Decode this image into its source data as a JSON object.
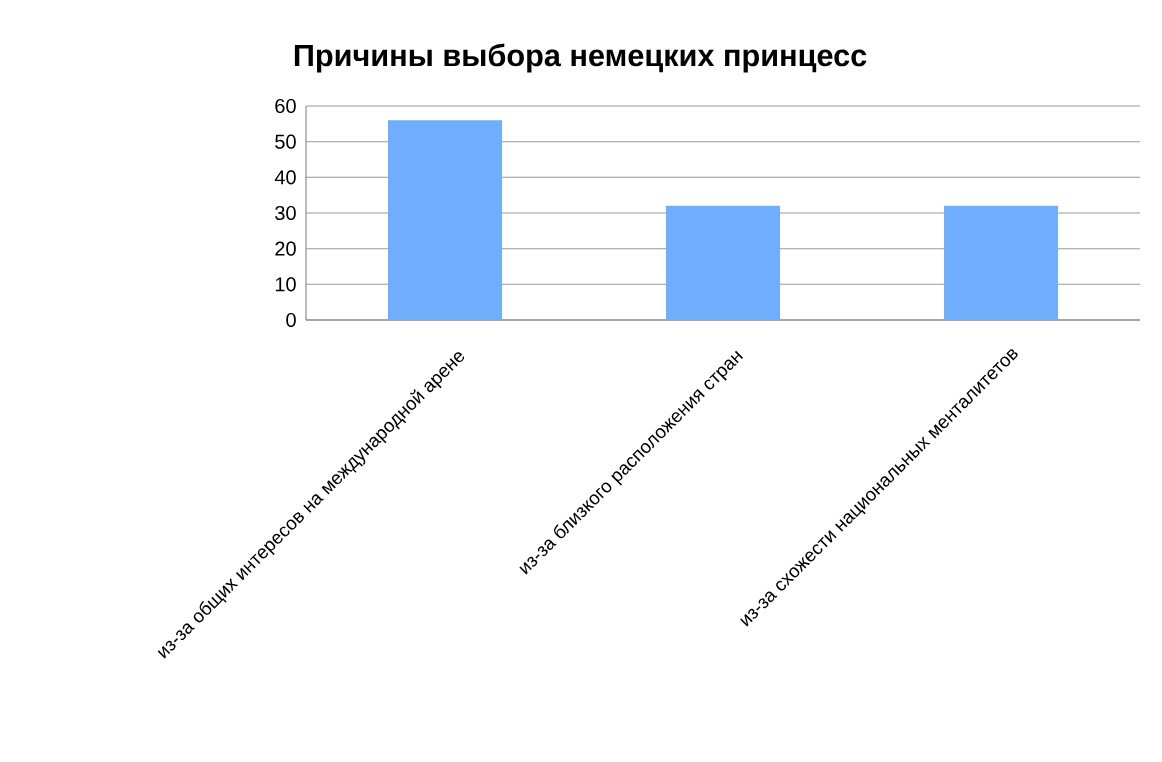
{
  "chart_data": {
    "type": "bar",
    "title": "Причины выбора немецких принцесс",
    "categories": [
      "из-за общих интересов на международной арене",
      "из-за близкого расположения  стран",
      "из-за схожести национальных менталитетов"
    ],
    "values": [
      56,
      32,
      32
    ],
    "color": "#6eaefc",
    "ylim": [
      0,
      60
    ],
    "yticks": [
      0,
      10,
      20,
      30,
      40,
      50,
      60
    ],
    "grid": "y"
  }
}
